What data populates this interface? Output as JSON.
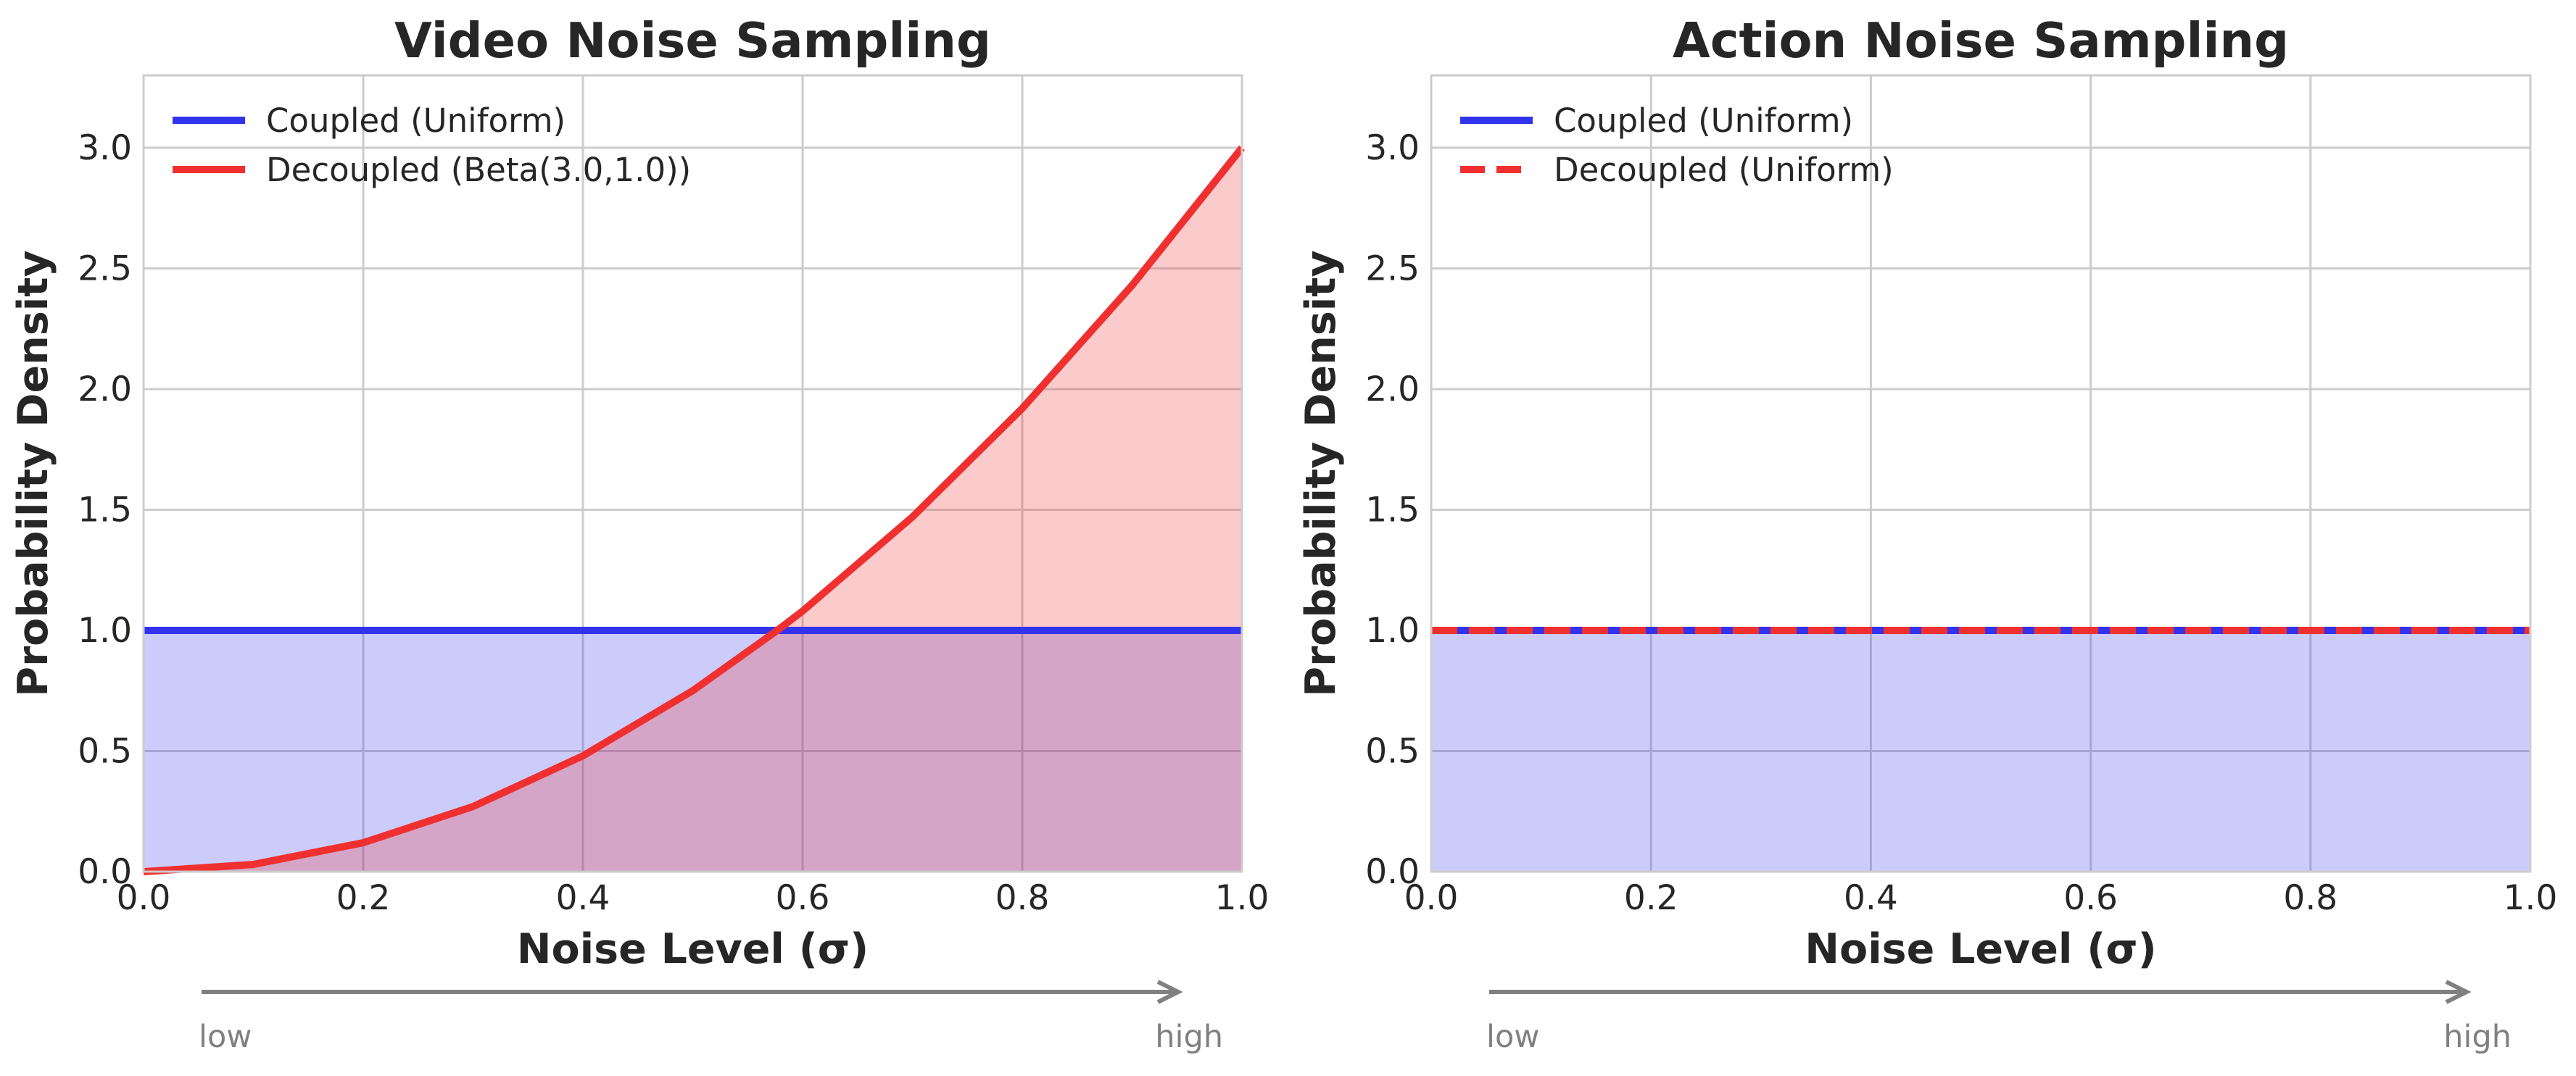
{
  "chart_data": [
    {
      "type": "line",
      "title": "Video Noise Sampling",
      "xlabel": "Noise Level (σ)",
      "ylabel": "Probability Density",
      "xlim": [
        0.0,
        1.0
      ],
      "ylim": [
        0.0,
        3.3
      ],
      "xticks": [
        "0.0",
        "0.2",
        "0.4",
        "0.6",
        "0.8",
        "1.0"
      ],
      "yticks": [
        "0.0",
        "0.5",
        "1.0",
        "1.5",
        "2.0",
        "2.5",
        "3.0"
      ],
      "grid": true,
      "legend_position": "top-left",
      "series": [
        {
          "name": "Coupled (Uniform)",
          "color": "#3333ee",
          "style": "solid",
          "fill": true,
          "x": [
            0.0,
            1.0
          ],
          "y": [
            1.0,
            1.0
          ]
        },
        {
          "name": "Decoupled (Beta(3.0,1.0))",
          "color": "#f03030",
          "style": "solid",
          "fill": true,
          "x": [
            0.0,
            0.1,
            0.2,
            0.3,
            0.4,
            0.5,
            0.577,
            0.6,
            0.7,
            0.8,
            0.9,
            1.0
          ],
          "y": [
            0.0,
            0.03,
            0.12,
            0.27,
            0.48,
            0.75,
            1.0,
            1.08,
            1.47,
            1.92,
            2.43,
            3.0
          ]
        }
      ],
      "axis_arrow": {
        "start_label": "low",
        "end_label": "high"
      }
    },
    {
      "type": "line",
      "title": "Action Noise Sampling",
      "xlabel": "Noise Level (σ)",
      "ylabel": "Probability Density",
      "xlim": [
        0.0,
        1.0
      ],
      "ylim": [
        0.0,
        3.3
      ],
      "xticks": [
        "0.0",
        "0.2",
        "0.4",
        "0.6",
        "0.8",
        "1.0"
      ],
      "yticks": [
        "0.0",
        "0.5",
        "1.0",
        "1.5",
        "2.0",
        "2.5",
        "3.0"
      ],
      "grid": true,
      "legend_position": "top-left",
      "series": [
        {
          "name": "Coupled (Uniform)",
          "color": "#3333ee",
          "style": "solid",
          "fill": true,
          "x": [
            0.0,
            1.0
          ],
          "y": [
            1.0,
            1.0
          ]
        },
        {
          "name": "Decoupled (Uniform)",
          "color": "#f03030",
          "style": "dashed",
          "fill": false,
          "x": [
            0.0,
            1.0
          ],
          "y": [
            1.0,
            1.0
          ]
        }
      ],
      "axis_arrow": {
        "start_label": "low",
        "end_label": "high"
      }
    }
  ]
}
